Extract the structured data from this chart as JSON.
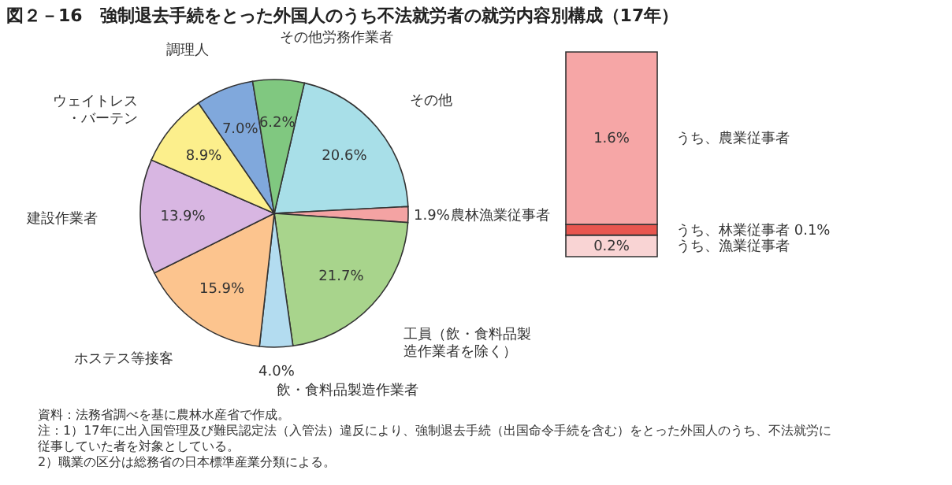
{
  "chart_data": [
    {
      "type": "pie",
      "title": "図２－16　強制退去手続をとった外国人のうち不法就労者の就労内容別構成（17年）",
      "categories": [
        "その他",
        "農林漁業従事者",
        "工員（飲・食料品製造作業者を除く）",
        "飲・食料品製造作業者",
        "ホステス等接客",
        "建設作業者",
        "ウェイトレス・バーテン",
        "調理人",
        "その他労務作業者"
      ],
      "values": [
        20.6,
        1.9,
        21.7,
        4.0,
        15.9,
        13.9,
        8.9,
        7.0,
        6.2
      ],
      "colors": [
        "#a8dfe8",
        "#f4a3a3",
        "#a8d48c",
        "#b3dcf0",
        "#fcc48e",
        "#d8b6e2",
        "#fcef8c",
        "#80a8dc",
        "#80c880"
      ],
      "value_labels": [
        "20.6%",
        "1.9%",
        "21.7%",
        "4.0%",
        "15.9%",
        "13.9%",
        "8.9%",
        "7.0%",
        "6.2%"
      ],
      "annotations": [
        "資料：法務省調べを基に農林水産省で作成。",
        "注：1）17年に出入国管理及び難民認定法（入管法）違反により、強制退去手続（出国命令手続を含む）をとった外国人のうち、不法就労に従事していた者を対象としている。",
        "2）職業の区分は総務省の日本標準産業分類による。"
      ]
    },
    {
      "type": "bar",
      "stacked": true,
      "categories": [
        null
      ],
      "series": [
        {
          "name": "うち、漁業従事者",
          "color": "#f9d4d4",
          "values": [
            0.2
          ],
          "value_labels": [
            "0.2%"
          ]
        },
        {
          "name": "うち、林業従事者",
          "color": "#e8564f",
          "values": [
            0.1
          ],
          "value_labels": [
            "0.1%"
          ]
        },
        {
          "name": "うち、農業従事者",
          "color": "#f6a6a6",
          "values": [
            1.6
          ],
          "value_labels": [
            "1.6%"
          ]
        }
      ]
    }
  ]
}
